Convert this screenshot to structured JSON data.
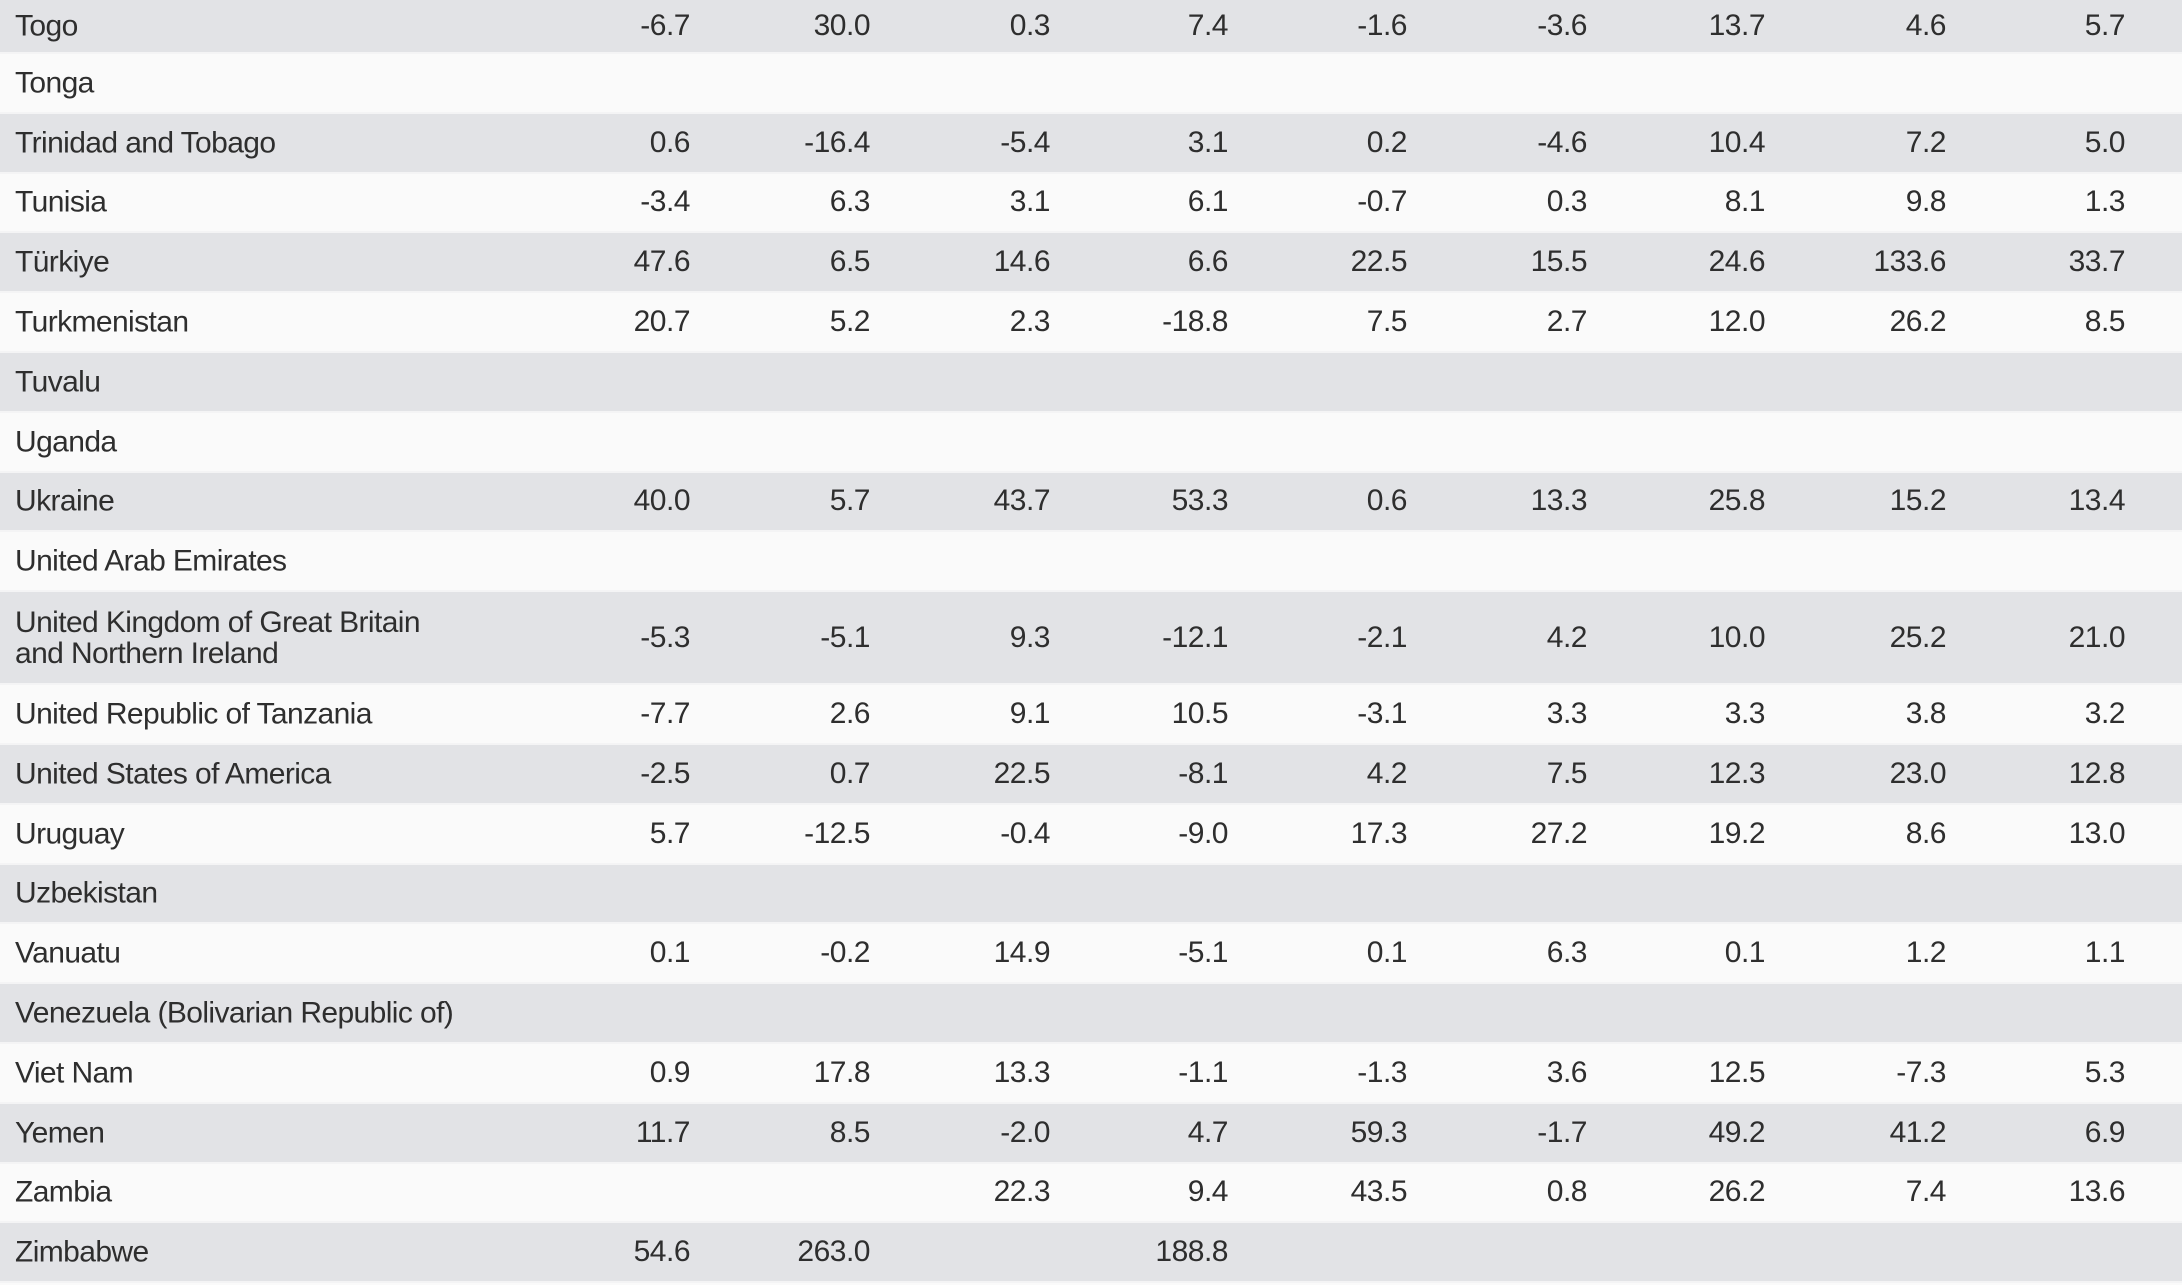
{
  "colors": {
    "row_shaded": "#e2e3e6",
    "row_plain": "#fafafa",
    "text": "#2e2e2e"
  },
  "rows": [
    {
      "name": "Togo",
      "values": [
        "-6.7",
        "30.0",
        "0.3",
        "7.4",
        "-1.6",
        "-3.6",
        "13.7",
        "4.6",
        "5.7"
      ]
    },
    {
      "name": "Tonga",
      "values": [
        null,
        null,
        null,
        null,
        null,
        null,
        null,
        null,
        null
      ]
    },
    {
      "name": "Trinidad and Tobago",
      "values": [
        "0.6",
        "-16.4",
        "-5.4",
        "3.1",
        "0.2",
        "-4.6",
        "10.4",
        "7.2",
        "5.0"
      ]
    },
    {
      "name": "Tunisia",
      "values": [
        "-3.4",
        "6.3",
        "3.1",
        "6.1",
        "-0.7",
        "0.3",
        "8.1",
        "9.8",
        "1.3"
      ]
    },
    {
      "name": "Türkiye",
      "values": [
        "47.6",
        "6.5",
        "14.6",
        "6.6",
        "22.5",
        "15.5",
        "24.6",
        "133.6",
        "33.7"
      ]
    },
    {
      "name": "Turkmenistan",
      "values": [
        "20.7",
        "5.2",
        "2.3",
        "-18.8",
        "7.5",
        "2.7",
        "12.0",
        "26.2",
        "8.5"
      ]
    },
    {
      "name": "Tuvalu",
      "values": [
        null,
        null,
        null,
        null,
        null,
        null,
        null,
        null,
        null
      ]
    },
    {
      "name": "Uganda",
      "values": [
        null,
        null,
        null,
        null,
        null,
        null,
        null,
        null,
        null
      ]
    },
    {
      "name": "Ukraine",
      "values": [
        "40.0",
        "5.7",
        "43.7",
        "53.3",
        "0.6",
        "13.3",
        "25.8",
        "15.2",
        "13.4"
      ]
    },
    {
      "name": "United Arab Emirates",
      "values": [
        null,
        null,
        null,
        null,
        null,
        null,
        null,
        null,
        null
      ]
    },
    {
      "name": "United Kingdom of Great Britain\nand Northern Ireland",
      "values": [
        "-5.3",
        "-5.1",
        "9.3",
        "-12.1",
        "-2.1",
        "4.2",
        "10.0",
        "25.2",
        "21.0"
      ]
    },
    {
      "name": "United Republic of Tanzania",
      "values": [
        "-7.7",
        "2.6",
        "9.1",
        "10.5",
        "-3.1",
        "3.3",
        "3.3",
        "3.8",
        "3.2"
      ]
    },
    {
      "name": "United States of America",
      "values": [
        "-2.5",
        "0.7",
        "22.5",
        "-8.1",
        "4.2",
        "7.5",
        "12.3",
        "23.0",
        "12.8"
      ]
    },
    {
      "name": "Uruguay",
      "values": [
        "5.7",
        "-12.5",
        "-0.4",
        "-9.0",
        "17.3",
        "27.2",
        "19.2",
        "8.6",
        "13.0"
      ]
    },
    {
      "name": "Uzbekistan",
      "values": [
        null,
        null,
        null,
        null,
        null,
        null,
        null,
        null,
        null
      ]
    },
    {
      "name": "Vanuatu",
      "values": [
        "0.1",
        "-0.2",
        "14.9",
        "-5.1",
        "0.1",
        "6.3",
        "0.1",
        "1.2",
        "1.1"
      ]
    },
    {
      "name": "Venezuela (Bolivarian Republic of)",
      "values": [
        null,
        null,
        null,
        null,
        null,
        null,
        null,
        null,
        null
      ]
    },
    {
      "name": "Viet Nam",
      "values": [
        "0.9",
        "17.8",
        "13.3",
        "-1.1",
        "-1.3",
        "3.6",
        "12.5",
        "-7.3",
        "5.3"
      ]
    },
    {
      "name": "Yemen",
      "values": [
        "11.7",
        "8.5",
        "-2.0",
        "4.7",
        "59.3",
        "-1.7",
        "49.2",
        "41.2",
        "6.9"
      ]
    },
    {
      "name": "Zambia",
      "values": [
        null,
        null,
        "22.3",
        "9.4",
        "43.5",
        "0.8",
        "26.2",
        "7.4",
        "13.6"
      ]
    },
    {
      "name": "Zimbabwe",
      "values": [
        "54.6",
        "263.0",
        null,
        "188.8",
        null,
        null,
        null,
        null,
        null
      ]
    }
  ]
}
